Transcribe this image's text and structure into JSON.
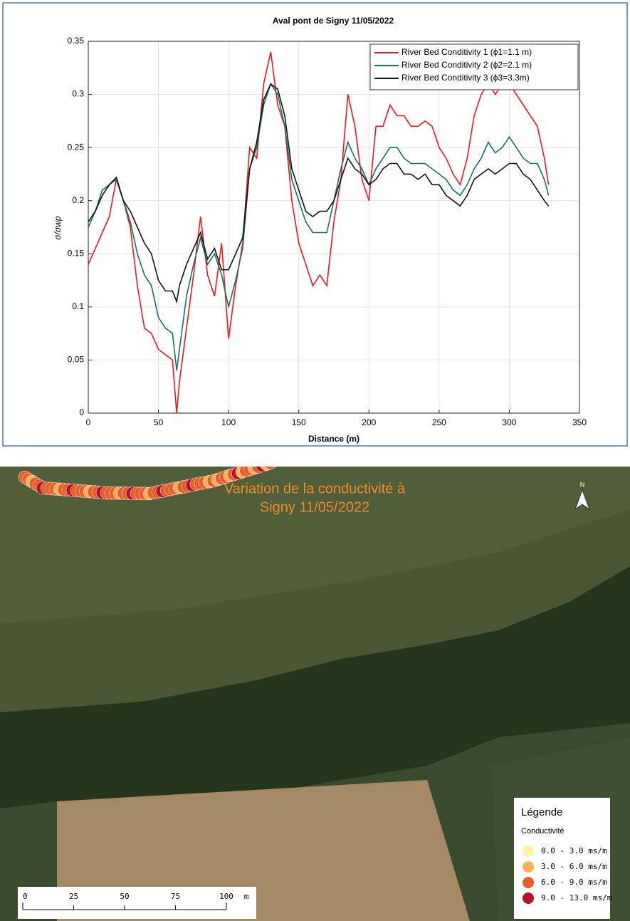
{
  "chart_data": {
    "type": "line",
    "title": "Aval pont de  Signy 11/05/2022",
    "x_label": "Distance (m)",
    "y_label": "σ/σwp",
    "x": [
      0,
      5,
      10,
      15,
      20,
      25,
      30,
      35,
      40,
      45,
      50,
      55,
      60,
      63,
      65,
      70,
      75,
      80,
      85,
      90,
      95,
      100,
      105,
      110,
      115,
      120,
      125,
      130,
      135,
      140,
      145,
      150,
      155,
      160,
      165,
      170,
      175,
      180,
      185,
      190,
      195,
      200,
      205,
      210,
      215,
      220,
      225,
      230,
      235,
      240,
      245,
      250,
      255,
      260,
      265,
      270,
      275,
      280,
      285,
      290,
      295,
      300,
      305,
      310,
      315,
      320,
      325,
      328
    ],
    "series": [
      {
        "name": "River Bed Conditivity 1 (ϕ1=1.1 m)",
        "color": "#e8191c",
        "values": [
          0.14,
          0.155,
          0.17,
          0.185,
          0.22,
          0.2,
          0.175,
          0.12,
          0.08,
          0.075,
          0.06,
          0.055,
          0.05,
          0,
          0.03,
          0.08,
          0.13,
          0.185,
          0.13,
          0.11,
          0.16,
          0.07,
          0.12,
          0.16,
          0.25,
          0.24,
          0.31,
          0.34,
          0.29,
          0.27,
          0.2,
          0.16,
          0.14,
          0.12,
          0.13,
          0.12,
          0.18,
          0.22,
          0.3,
          0.27,
          0.22,
          0.2,
          0.27,
          0.27,
          0.29,
          0.28,
          0.28,
          0.27,
          0.27,
          0.275,
          0.27,
          0.25,
          0.24,
          0.225,
          0.215,
          0.24,
          0.28,
          0.3,
          0.31,
          0.3,
          0.31,
          0.31,
          0.3,
          0.29,
          0.28,
          0.27,
          0.24,
          0.215
        ]
      },
      {
        "name": "River Bed Conditivity 2 (ϕ2=2.1 m)",
        "color": "#17705f",
        "values": [
          0.175,
          0.19,
          0.21,
          0.215,
          0.22,
          0.2,
          0.18,
          0.15,
          0.13,
          0.12,
          0.09,
          0.08,
          0.075,
          0.04,
          0.06,
          0.11,
          0.14,
          0.165,
          0.14,
          0.15,
          0.13,
          0.1,
          0.125,
          0.155,
          0.23,
          0.25,
          0.29,
          0.31,
          0.3,
          0.27,
          0.22,
          0.2,
          0.18,
          0.17,
          0.17,
          0.17,
          0.2,
          0.23,
          0.255,
          0.24,
          0.23,
          0.215,
          0.23,
          0.24,
          0.25,
          0.25,
          0.24,
          0.235,
          0.235,
          0.235,
          0.23,
          0.225,
          0.22,
          0.21,
          0.205,
          0.215,
          0.23,
          0.24,
          0.255,
          0.245,
          0.25,
          0.26,
          0.25,
          0.24,
          0.235,
          0.235,
          0.22,
          0.205
        ]
      },
      {
        "name": "River Bed Conditivity 3 (ϕ3=3.3m)",
        "color": "#111111",
        "values": [
          0.18,
          0.19,
          0.205,
          0.215,
          0.222,
          0.2,
          0.19,
          0.175,
          0.16,
          0.15,
          0.125,
          0.115,
          0.115,
          0.105,
          0.12,
          0.14,
          0.155,
          0.17,
          0.145,
          0.155,
          0.135,
          0.135,
          0.15,
          0.165,
          0.23,
          0.255,
          0.295,
          0.31,
          0.305,
          0.28,
          0.23,
          0.21,
          0.19,
          0.185,
          0.19,
          0.19,
          0.2,
          0.22,
          0.24,
          0.23,
          0.225,
          0.215,
          0.22,
          0.23,
          0.235,
          0.235,
          0.225,
          0.225,
          0.22,
          0.225,
          0.215,
          0.215,
          0.205,
          0.2,
          0.195,
          0.205,
          0.22,
          0.225,
          0.23,
          0.225,
          0.23,
          0.235,
          0.235,
          0.225,
          0.22,
          0.21,
          0.2,
          0.195
        ]
      }
    ],
    "xlim": [
      0,
      350
    ],
    "xticks": [
      0,
      50,
      100,
      150,
      200,
      250,
      300,
      350
    ],
    "ylim": [
      0,
      0.35
    ],
    "yticks": [
      0,
      0.05,
      0.1,
      0.15,
      0.2,
      0.25,
      0.3,
      0.35
    ],
    "grid": true,
    "legend": "upper-right"
  },
  "map": {
    "title": [
      "Variation de la conductivité à",
      "Signy  11/05/2022"
    ],
    "north": "N",
    "legend": {
      "title": "Légende",
      "subtitle": "Conductivité",
      "items": [
        {
          "label": "0.0 - 3.0 ms/m",
          "color": "#fdf3a6"
        },
        {
          "label": "3.0 - 6.0 ms/m",
          "color": "#f7b15a"
        },
        {
          "label": "6.0 - 9.0 ms/m",
          "color": "#ea5d2a"
        },
        {
          "label": "9.0 - 13.0 ms/m",
          "color": "#b4112a"
        }
      ]
    },
    "scale": {
      "labels": [
        "0",
        "25",
        "50",
        "75",
        "100"
      ],
      "unit": "m"
    }
  }
}
